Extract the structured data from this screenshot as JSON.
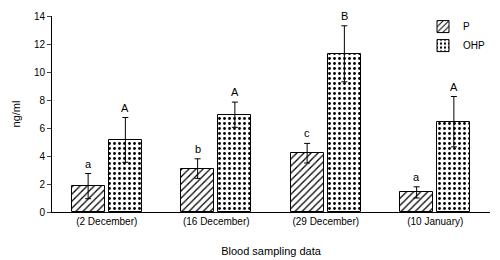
{
  "chart_data": {
    "type": "bar",
    "x_label": "Blood sampling data",
    "y_label": "ng/ml",
    "categories": [
      "(2 December)",
      "(16 December)",
      "(29 December)",
      "(10 January)"
    ],
    "series": [
      {
        "name": "P",
        "color": "#ffffff",
        "marker": "hatched",
        "values": [
          1.85,
          3.1,
          4.2,
          1.4
        ],
        "errors": [
          0.9,
          0.7,
          0.7,
          0.4
        ],
        "letters": [
          "a",
          "b",
          "c",
          "a"
        ]
      },
      {
        "name": "OHP",
        "color": "#ffffff",
        "marker": "dotted",
        "values": [
          5.15,
          6.95,
          11.3,
          6.45
        ],
        "errors": [
          1.6,
          0.9,
          2.0,
          1.8
        ],
        "letters": [
          "A",
          "A",
          "B",
          "A"
        ]
      }
    ],
    "ylim": [
      0,
      14
    ],
    "yticks": [
      0,
      2,
      4,
      6,
      8,
      10,
      12,
      14
    ],
    "grid": false,
    "legend": "top right"
  }
}
